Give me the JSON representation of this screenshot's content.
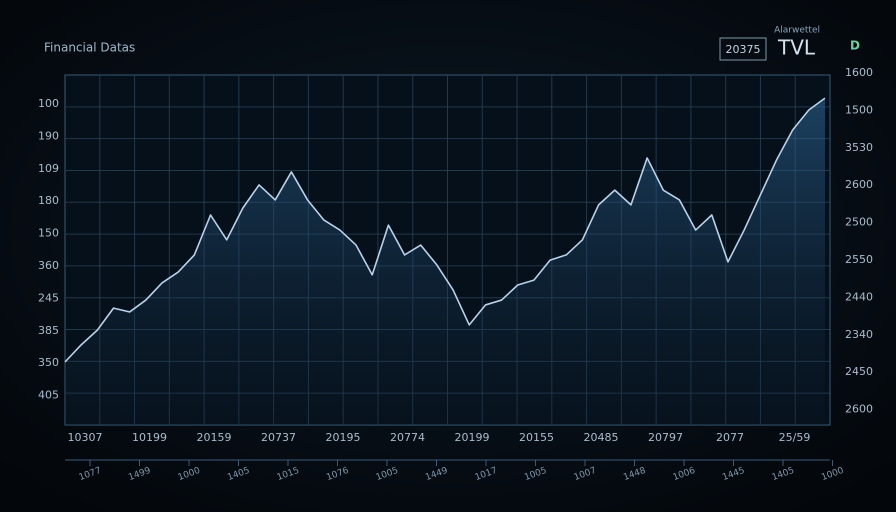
{
  "chart_data": {
    "type": "line",
    "title": "Financial Datas",
    "header_small": "Alarwettel",
    "header_box": "20375",
    "header_label": "TVL",
    "header_icon": "D",
    "left_axis_labels": [
      "100",
      "190",
      "109",
      "180",
      "150",
      "360",
      "245",
      "385",
      "350",
      "405"
    ],
    "right_axis_labels": [
      "1600",
      "1500",
      "3530",
      "2600",
      "2500",
      "2550",
      "2440",
      "2340",
      "2450",
      "2600"
    ],
    "x_labels": [
      "10307",
      "10199",
      "20159",
      "20737",
      "20195",
      "20774",
      "20199",
      "20155",
      "20485",
      "20797",
      "2077",
      "25/59"
    ],
    "x_sub_labels": [
      "1077",
      "1499",
      "1000",
      "1405",
      "1015",
      "1076",
      "1005",
      "1449",
      "1017",
      "1005",
      "1007",
      "1448",
      "1006",
      "1445",
      "1405",
      "1000"
    ],
    "ylim": [
      0,
      100
    ],
    "series": [
      {
        "color": "#b9d2ea",
        "values": [
          18,
          22.9,
          27.1,
          33.4,
          32.3,
          35.7,
          40.6,
          43.7,
          48.6,
          60,
          52.9,
          62,
          68.6,
          64.3,
          72.3,
          64.3,
          58.6,
          55.7,
          51.4,
          42.9,
          57.1,
          48.6,
          51.4,
          45.7,
          38.6,
          28.6,
          34.3,
          35.7,
          40,
          41.4,
          47.1,
          48.6,
          52.9,
          62.9,
          67.1,
          62.9,
          76.3,
          67.1,
          64.3,
          55.7,
          60,
          46.6,
          55.7,
          65.7,
          75.7,
          84.3,
          90,
          93.4
        ]
      }
    ]
  }
}
